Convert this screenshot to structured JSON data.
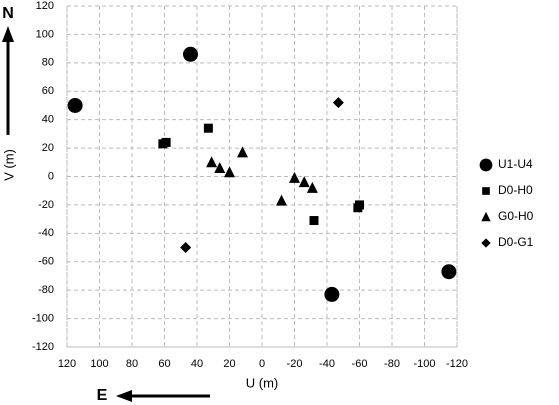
{
  "chart_data": {
    "type": "scatter",
    "x_label": "U (m)",
    "y_label": "V (m)",
    "north_label": "N",
    "east_label": "E",
    "xlim": [
      120,
      -120
    ],
    "ylim": [
      -120,
      120
    ],
    "xticks": [
      120,
      100,
      80,
      60,
      40,
      20,
      0,
      -20,
      -40,
      -60,
      -80,
      -100,
      -120
    ],
    "yticks": [
      -120,
      -100,
      -80,
      -60,
      -40,
      -20,
      0,
      20,
      40,
      60,
      80,
      100,
      120
    ],
    "grid": true,
    "legend": "right",
    "series": [
      {
        "name": "U1-U4",
        "color": "#000000",
        "marker": "circle",
        "x": [
          115,
          44,
          -43,
          -115
        ],
        "y": [
          50,
          86,
          -83,
          -67
        ]
      },
      {
        "name": "D0-H0",
        "color": "#000000",
        "marker": "square",
        "x": [
          61,
          59,
          33,
          -32,
          -59,
          -60
        ],
        "y": [
          23,
          24,
          34,
          -31,
          -22,
          -20
        ]
      },
      {
        "name": "G0-H0",
        "color": "#000000",
        "marker": "triangle",
        "x": [
          31,
          26,
          20,
          12,
          -12,
          -20,
          -26,
          -31
        ],
        "y": [
          10,
          6,
          3,
          17,
          -17,
          -1,
          -4,
          -8
        ]
      },
      {
        "name": "D0-G1",
        "color": "#000000",
        "marker": "diamond",
        "x": [
          -47,
          47
        ],
        "y": [
          52,
          -50
        ]
      }
    ]
  }
}
